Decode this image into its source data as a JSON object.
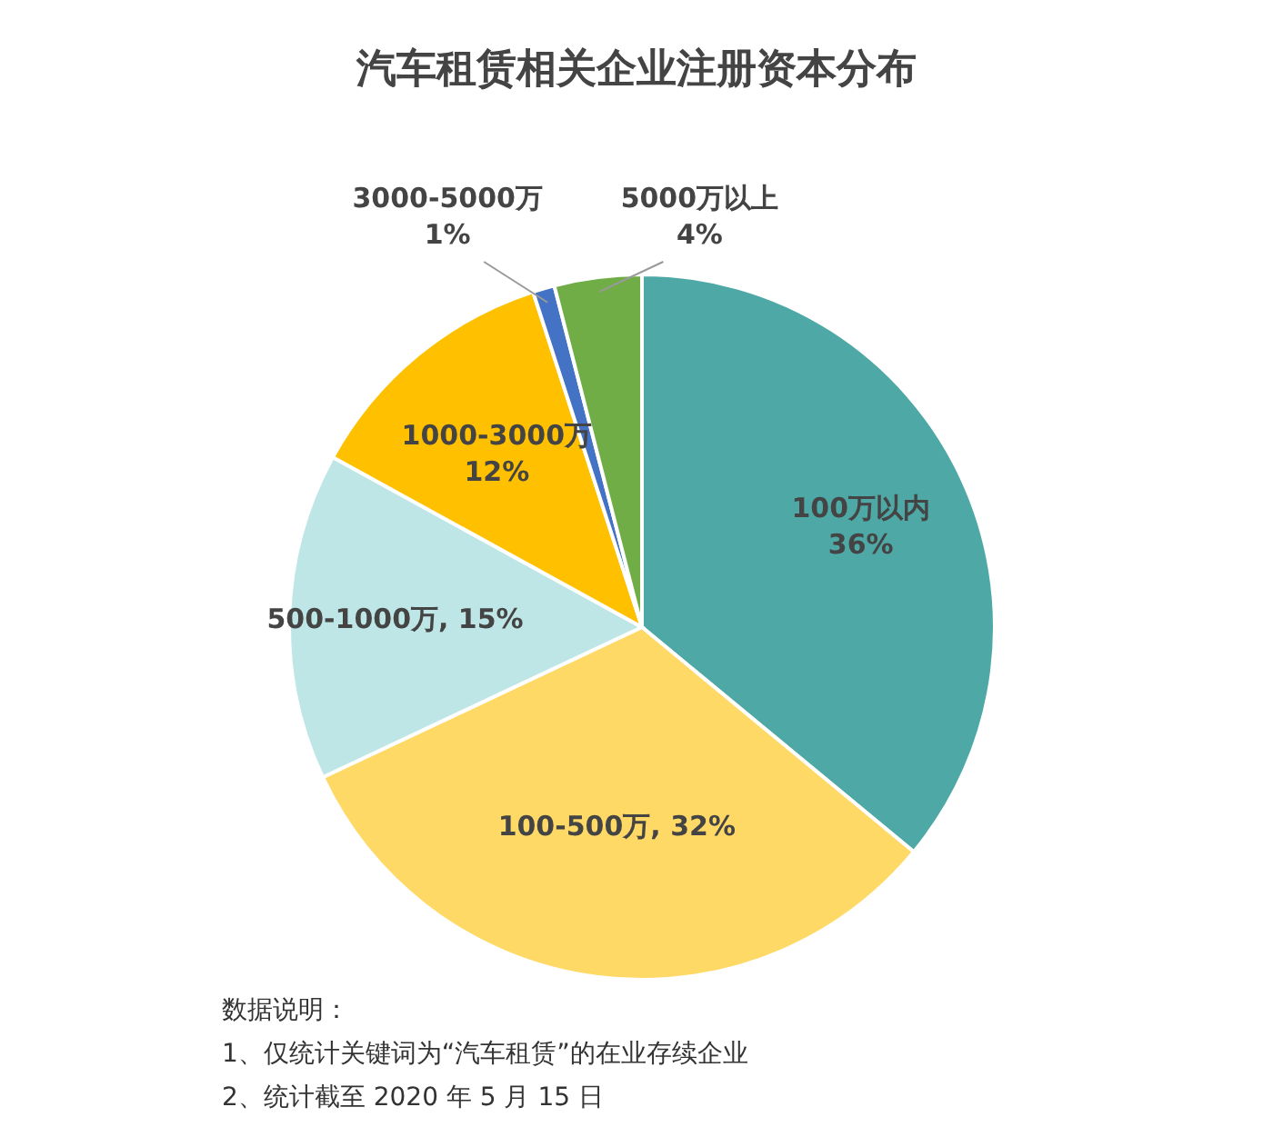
{
  "chart_data": {
    "type": "pie",
    "title": "汽车租赁相关企业注册资本分布",
    "categories": [
      "100万以内",
      "100-500万",
      "500-1000万",
      "1000-3000万",
      "3000-5000万",
      "5000万以上"
    ],
    "values": [
      36,
      32,
      15,
      12,
      1,
      4
    ],
    "value_labels": [
      "36%",
      ", 32%",
      ", 15%",
      "12%",
      "1%",
      "4%"
    ],
    "colors": [
      "#4ea9a6",
      "#ffd966",
      "#bfe6e6",
      "#ffc000",
      "#4472c4",
      "#70ad47"
    ],
    "annotations": [
      "数据说明：",
      "1、仅统计关键词为“汽车租赁”的在业存续企业",
      "2、统计截至 2020 年 5 月 15 日"
    ]
  }
}
